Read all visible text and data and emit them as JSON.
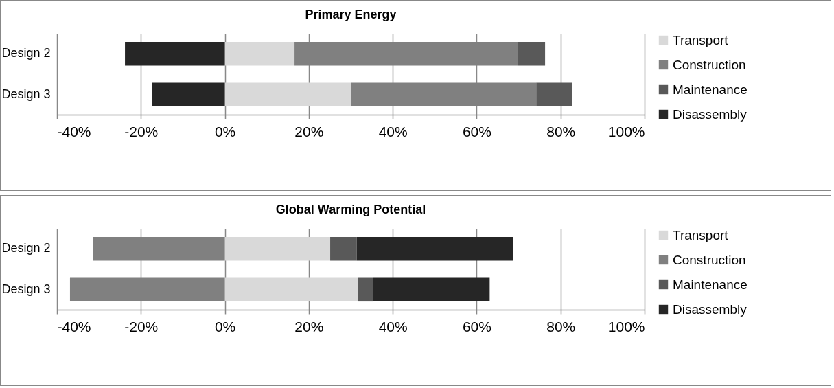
{
  "chart_data": [
    {
      "type": "bar",
      "orientation": "horizontal",
      "stacked": true,
      "title": "Primary Energy",
      "categories": [
        "Design 2",
        "Design 3"
      ],
      "series": [
        {
          "name": "Transport",
          "color": "#d9d9d9",
          "values": [
            16.6,
            30.1
          ]
        },
        {
          "name": "Construction",
          "color": "#808080",
          "values": [
            53.2,
            44.1
          ]
        },
        {
          "name": "Maintenance",
          "color": "#595959",
          "values": [
            6.5,
            8.5
          ]
        },
        {
          "name": "Disassembly",
          "color": "#262626",
          "values": [
            -23.8,
            -17.4
          ]
        }
      ],
      "xlim": [
        -40,
        100
      ],
      "xticks": [
        {
          "value": -40,
          "label": "-40%"
        },
        {
          "value": -20,
          "label": "-20%"
        },
        {
          "value": 0,
          "label": "0%"
        },
        {
          "value": 20,
          "label": "20%"
        },
        {
          "value": 40,
          "label": "40%"
        },
        {
          "value": 60,
          "label": "60%"
        },
        {
          "value": 80,
          "label": "80%"
        },
        {
          "value": 100,
          "label": "100%"
        }
      ],
      "grid": "x",
      "legend": "right"
    },
    {
      "type": "bar",
      "orientation": "horizontal",
      "stacked": true,
      "title": "Global Warming Potential",
      "categories": [
        "Design 2",
        "Design 3"
      ],
      "series": [
        {
          "name": "Transport",
          "color": "#d9d9d9",
          "values": [
            25.1,
            31.8
          ]
        },
        {
          "name": "Construction",
          "color": "#808080",
          "values": [
            -31.4,
            -36.9
          ]
        },
        {
          "name": "Maintenance",
          "color": "#595959",
          "values": [
            6.3,
            3.5
          ]
        },
        {
          "name": "Disassembly",
          "color": "#262626",
          "values": [
            37.3,
            27.8
          ]
        }
      ],
      "xlim": [
        -40,
        100
      ],
      "xticks": [
        {
          "value": -40,
          "label": "-40%"
        },
        {
          "value": -20,
          "label": "-20%"
        },
        {
          "value": 0,
          "label": "0%"
        },
        {
          "value": 20,
          "label": "20%"
        },
        {
          "value": 40,
          "label": "40%"
        },
        {
          "value": 60,
          "label": "60%"
        },
        {
          "value": 80,
          "label": "80%"
        },
        {
          "value": 100,
          "label": "100%"
        }
      ],
      "grid": "x",
      "legend": "right"
    }
  ]
}
